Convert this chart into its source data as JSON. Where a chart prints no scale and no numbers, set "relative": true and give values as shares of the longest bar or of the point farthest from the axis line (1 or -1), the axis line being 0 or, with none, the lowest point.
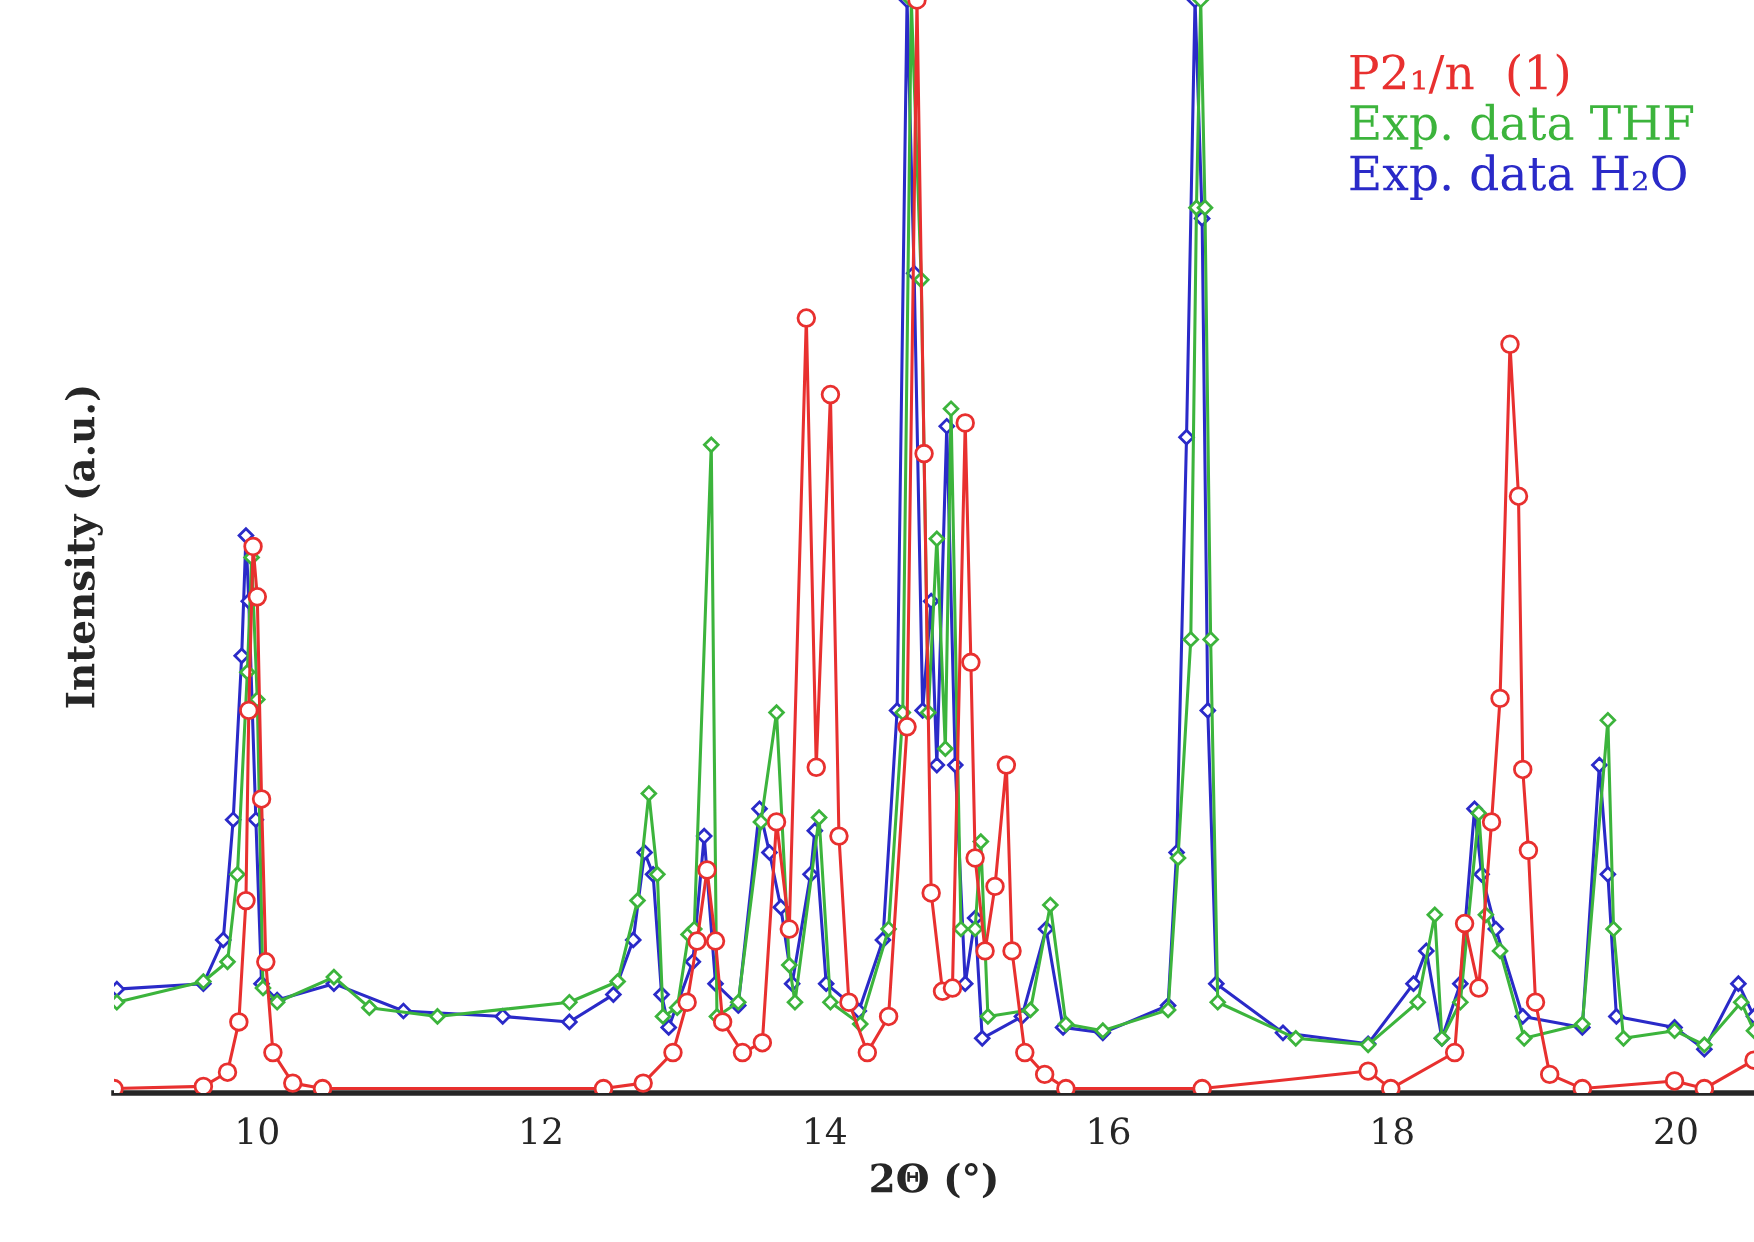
{
  "chart_data": {
    "type": "line",
    "xlabel": "2Θ (°)",
    "ylabel": "Intensity (a.u.)",
    "relative": true,
    "xlim": [
      8.99,
      20.55
    ],
    "xticks": [
      10,
      12,
      14,
      16,
      18,
      20
    ],
    "tick_labels": "x",
    "legend": "top right",
    "grid": false,
    "line_style": "solid",
    "series": [
      {
        "name": "P2₁/n  (1)",
        "color": "#e8302f",
        "marker": "circle",
        "x": [
          8.99,
          9.62,
          9.79,
          9.87,
          9.92,
          9.94,
          9.97,
          10.0,
          10.03,
          10.06,
          10.11,
          10.25,
          10.46,
          12.44,
          12.72,
          12.93,
          13.03,
          13.1,
          13.17,
          13.23,
          13.28,
          13.42,
          13.56,
          13.66,
          13.75,
          13.87,
          13.94,
          14.04,
          14.1,
          14.17,
          14.3,
          14.45,
          14.58,
          14.65,
          14.7,
          14.75,
          14.83,
          14.9,
          14.99,
          15.03,
          15.06,
          15.13,
          15.2,
          15.28,
          15.32,
          15.41,
          15.55,
          15.7,
          16.66,
          17.83,
          17.99,
          18.44,
          18.51,
          18.61,
          18.7,
          18.76,
          18.83,
          18.89,
          18.92,
          18.96,
          19.01,
          19.11,
          19.34,
          19.99,
          20.2,
          20.55
        ],
        "values": [
          0.004,
          0.006,
          0.019,
          0.065,
          0.176,
          0.35,
          0.5,
          0.454,
          0.269,
          0.12,
          0.037,
          0.009,
          0.004,
          0.004,
          0.009,
          0.037,
          0.083,
          0.139,
          0.204,
          0.139,
          0.065,
          0.037,
          0.046,
          0.248,
          0.15,
          0.709,
          0.298,
          0.639,
          0.235,
          0.083,
          0.037,
          0.07,
          0.335,
          1.0,
          0.585,
          0.183,
          0.093,
          0.096,
          0.613,
          0.394,
          0.215,
          0.13,
          0.189,
          0.3,
          0.13,
          0.037,
          0.017,
          0.004,
          0.004,
          0.02,
          0.004,
          0.037,
          0.155,
          0.096,
          0.248,
          0.361,
          0.685,
          0.546,
          0.296,
          0.222,
          0.083,
          0.017,
          0.004,
          0.011,
          0.004,
          0.03
        ]
      },
      {
        "name": "Exp. data THF",
        "color": "#3cb43c",
        "marker": "diamond",
        "x": [
          9.01,
          9.62,
          9.79,
          9.86,
          9.93,
          9.96,
          10.0,
          10.04,
          10.14,
          10.54,
          10.79,
          11.27,
          12.2,
          12.54,
          12.68,
          12.76,
          12.82,
          12.86,
          12.96,
          13.04,
          13.08,
          13.2,
          13.24,
          13.39,
          13.55,
          13.66,
          13.75,
          13.79,
          13.96,
          14.04,
          14.25,
          14.45,
          14.55,
          14.61,
          14.68,
          14.73,
          14.79,
          14.85,
          14.89,
          14.96,
          15.06,
          15.1,
          15.15,
          15.45,
          15.59,
          15.7,
          15.96,
          16.42,
          16.49,
          16.58,
          16.62,
          16.65,
          16.68,
          16.72,
          16.77,
          17.32,
          17.83,
          18.18,
          18.3,
          18.35,
          18.48,
          18.61,
          18.66,
          18.76,
          18.93,
          19.34,
          19.52,
          19.56,
          19.63,
          19.99,
          20.2,
          20.46,
          20.55
        ],
        "values": [
          0.083,
          0.102,
          0.12,
          0.2,
          0.385,
          0.49,
          0.36,
          0.096,
          0.083,
          0.106,
          0.078,
          0.07,
          0.083,
          0.102,
          0.176,
          0.274,
          0.2,
          0.07,
          0.078,
          0.145,
          0.15,
          0.593,
          0.07,
          0.083,
          0.248,
          0.348,
          0.117,
          0.083,
          0.252,
          0.083,
          0.063,
          0.15,
          0.348,
          1.0,
          0.744,
          0.348,
          0.507,
          0.315,
          0.626,
          0.15,
          0.15,
          0.23,
          0.07,
          0.076,
          0.172,
          0.063,
          0.057,
          0.076,
          0.215,
          0.415,
          0.81,
          1.0,
          0.81,
          0.415,
          0.083,
          0.05,
          0.044,
          0.083,
          0.163,
          0.05,
          0.083,
          0.256,
          0.163,
          0.13,
          0.05,
          0.063,
          0.341,
          0.15,
          0.05,
          0.057,
          0.044,
          0.083,
          0.057
        ]
      },
      {
        "name": "Exp. data H₂O",
        "color": "#2a2ac8",
        "marker": "diamond",
        "x": [
          9.01,
          9.62,
          9.76,
          9.83,
          9.89,
          9.92,
          9.94,
          9.99,
          10.03,
          10.14,
          10.54,
          11.03,
          11.73,
          12.2,
          12.51,
          12.65,
          12.73,
          12.79,
          12.85,
          12.9,
          13.07,
          13.15,
          13.23,
          13.39,
          13.54,
          13.61,
          13.69,
          13.77,
          13.9,
          13.93,
          14.01,
          14.24,
          14.41,
          14.51,
          14.58,
          14.63,
          14.69,
          14.75,
          14.79,
          14.86,
          14.92,
          14.99,
          15.06,
          15.11,
          15.39,
          15.56,
          15.68,
          15.96,
          16.42,
          16.48,
          16.55,
          16.61,
          16.66,
          16.7,
          16.76,
          17.23,
          17.83,
          18.15,
          18.24,
          18.35,
          18.48,
          18.58,
          18.63,
          18.73,
          18.92,
          19.34,
          19.46,
          19.52,
          19.58,
          19.99,
          20.2,
          20.44,
          20.55
        ],
        "values": [
          0.095,
          0.1,
          0.14,
          0.25,
          0.4,
          0.51,
          0.45,
          0.25,
          0.1,
          0.085,
          0.1,
          0.075,
          0.07,
          0.065,
          0.09,
          0.14,
          0.22,
          0.2,
          0.09,
          0.06,
          0.12,
          0.235,
          0.1,
          0.08,
          0.26,
          0.22,
          0.17,
          0.1,
          0.2,
          0.24,
          0.1,
          0.075,
          0.14,
          0.35,
          1.0,
          0.75,
          0.35,
          0.45,
          0.3,
          0.61,
          0.3,
          0.1,
          0.16,
          0.05,
          0.07,
          0.15,
          0.06,
          0.055,
          0.08,
          0.22,
          0.6,
          1.0,
          0.8,
          0.35,
          0.1,
          0.055,
          0.045,
          0.1,
          0.13,
          0.05,
          0.1,
          0.26,
          0.2,
          0.15,
          0.07,
          0.06,
          0.3,
          0.2,
          0.07,
          0.06,
          0.04,
          0.1,
          0.07
        ]
      }
    ]
  }
}
